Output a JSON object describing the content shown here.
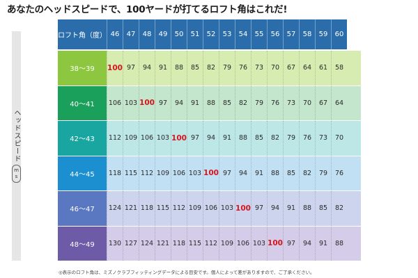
{
  "title": "あなたのヘッドスピードで、100ヤードが打てるロフト角はこれだ!",
  "header": {
    "label": "ロフト角（度）",
    "lofts": [
      "46",
      "47",
      "48",
      "49",
      "50",
      "51",
      "52",
      "53",
      "54",
      "55",
      "56",
      "57",
      "58",
      "59",
      "60"
    ]
  },
  "side": {
    "label": "ヘッドスピード",
    "unit_top": "m",
    "unit_bottom": "s"
  },
  "rows": [
    {
      "label": "38〜39",
      "values": [
        "100",
        "97",
        "94",
        "91",
        "88",
        "85",
        "82",
        "79",
        "76",
        "73",
        "70",
        "67",
        "64",
        "61",
        "58"
      ],
      "highlight": 0
    },
    {
      "label": "40〜41",
      "values": [
        "106",
        "103",
        "100",
        "97",
        "94",
        "91",
        "88",
        "85",
        "82",
        "79",
        "76",
        "73",
        "70",
        "67",
        "64"
      ],
      "highlight": 2
    },
    {
      "label": "42〜43",
      "values": [
        "112",
        "109",
        "106",
        "103",
        "100",
        "97",
        "94",
        "91",
        "88",
        "85",
        "82",
        "79",
        "76",
        "73",
        "70"
      ],
      "highlight": 4
    },
    {
      "label": "44〜45",
      "values": [
        "118",
        "115",
        "112",
        "109",
        "106",
        "103",
        "100",
        "97",
        "94",
        "91",
        "88",
        "85",
        "82",
        "79",
        "76"
      ],
      "highlight": 6
    },
    {
      "label": "46〜47",
      "values": [
        "124",
        "121",
        "118",
        "115",
        "112",
        "109",
        "106",
        "103",
        "100",
        "97",
        "94",
        "91",
        "88",
        "85",
        "82"
      ],
      "highlight": 8
    },
    {
      "label": "48〜49",
      "values": [
        "130",
        "127",
        "124",
        "121",
        "118",
        "115",
        "112",
        "109",
        "106",
        "103",
        "100",
        "97",
        "94",
        "91",
        "88"
      ],
      "highlight": 10
    }
  ],
  "colors": {
    "header_bg": "#2b6dab",
    "highlight_text": "#d8141c",
    "row_label_bg": [
      "#8dc63f",
      "#1aa05a",
      "#1aa6a0",
      "#1c8fd0",
      "#5a78c2",
      "#6e5ba8"
    ],
    "row_cell_bg": [
      "#d6ecb0",
      "#c4e6cc",
      "#bde6e6",
      "#c2e0f3",
      "#ccd4ee",
      "#d4cce8"
    ]
  },
  "footnote": "◎表示のロフト角は、ミズノクラブフィッティングデータによる目安です。個人によって差がありますので、ご了承ください。"
}
